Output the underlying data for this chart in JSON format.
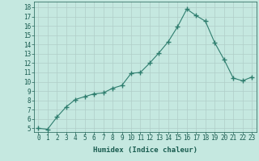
{
  "x": [
    0,
    1,
    2,
    3,
    4,
    5,
    6,
    7,
    8,
    9,
    10,
    11,
    12,
    13,
    14,
    15,
    16,
    17,
    18,
    19,
    20,
    21,
    22,
    23
  ],
  "y": [
    5.0,
    4.9,
    6.2,
    7.3,
    8.1,
    8.4,
    8.7,
    8.8,
    9.3,
    9.6,
    10.9,
    11.0,
    12.0,
    13.1,
    14.3,
    15.9,
    17.8,
    17.1,
    16.5,
    14.2,
    12.4,
    10.4,
    10.1,
    10.5
  ],
  "line_color": "#2e7d6e",
  "marker": "+",
  "marker_size": 4,
  "bg_color": "#c5e8e0",
  "grid_color": "#b0cec8",
  "xlabel": "Humidex (Indice chaleur)",
  "ylabel_ticks": [
    5,
    6,
    7,
    8,
    9,
    10,
    11,
    12,
    13,
    14,
    15,
    16,
    17,
    18
  ],
  "ylim": [
    4.6,
    18.6
  ],
  "xlim": [
    -0.5,
    23.5
  ],
  "xticks": [
    0,
    1,
    2,
    3,
    4,
    5,
    6,
    7,
    8,
    9,
    10,
    11,
    12,
    13,
    14,
    15,
    16,
    17,
    18,
    19,
    20,
    21,
    22,
    23
  ],
  "tick_label_color": "#1a5c50",
  "label_fontsize": 6.5,
  "tick_fontsize": 5.5
}
